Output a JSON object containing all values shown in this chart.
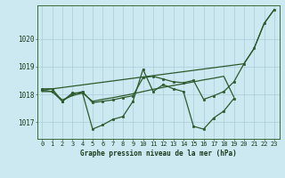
{
  "title": "Graphe pression niveau de la mer (hPa)",
  "bg_color": "#cce8f0",
  "grid_color": "#aaccd8",
  "line_color": "#2d5a2d",
  "marker_color": "#2d5a2d",
  "x_labels": [
    "0",
    "1",
    "2",
    "3",
    "4",
    "5",
    "6",
    "7",
    "8",
    "9",
    "10",
    "11",
    "12",
    "13",
    "14",
    "15",
    "16",
    "17",
    "18",
    "19",
    "20",
    "21",
    "22",
    "23"
  ],
  "ylim": [
    1016.4,
    1021.2
  ],
  "yticks": [
    1017,
    1018,
    1019,
    1020
  ],
  "series": [
    {
      "y": [
        1018.2,
        1018.2,
        1017.75,
        1018.05,
        1018.05,
        1016.75,
        1016.9,
        1017.1,
        1017.2,
        1017.75,
        1018.9,
        1018.1,
        1018.35,
        1018.2,
        1018.1,
        1016.85,
        1016.75,
        1017.15,
        1017.4,
        1017.85,
        null,
        null,
        null,
        null
      ],
      "markers": true,
      "lw": 0.9
    },
    {
      "y": [
        1018.1,
        1018.1,
        1017.8,
        1017.95,
        1018.05,
        1017.75,
        1017.82,
        1017.88,
        1017.95,
        1018.02,
        1018.1,
        1018.18,
        1018.25,
        1018.32,
        1018.38,
        1018.45,
        1018.52,
        1018.58,
        1018.65,
        1017.9,
        null,
        null,
        null,
        null
      ],
      "markers": false,
      "lw": 0.9
    },
    {
      "y": [
        1018.15,
        1018.1,
        1017.75,
        1018.0,
        1018.1,
        1017.7,
        1017.75,
        1017.8,
        1017.88,
        1017.95,
        1018.6,
        1018.65,
        1018.55,
        1018.45,
        1018.42,
        1018.5,
        1017.82,
        1017.95,
        1018.1,
        1018.45,
        1019.1,
        1019.65,
        1020.55,
        1021.05
      ],
      "markers": true,
      "lw": 0.9
    },
    {
      "y": [
        1018.15,
        null,
        null,
        null,
        null,
        null,
        null,
        null,
        null,
        null,
        null,
        null,
        null,
        null,
        null,
        null,
        null,
        null,
        null,
        null,
        1019.1,
        1019.65,
        1020.55,
        1021.05
      ],
      "markers": false,
      "lw": 0.9
    }
  ]
}
